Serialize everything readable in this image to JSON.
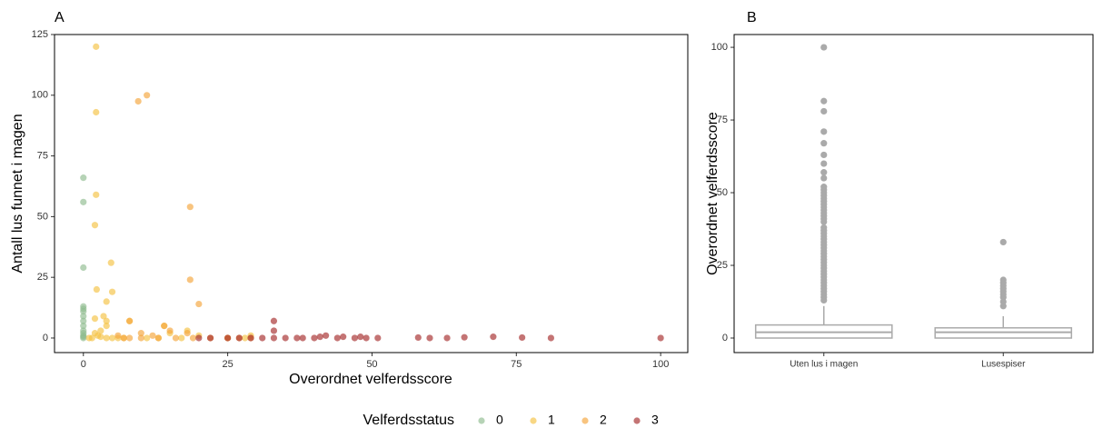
{
  "chart_data": [
    {
      "type": "scatter",
      "panel_label": "A",
      "x_label": "Overordnet velferdsscore",
      "y_label": "Antall lus funnet i magen",
      "xlim": [
        -5,
        104.7
      ],
      "ylim": [
        -6,
        125
      ],
      "xticks": [
        0,
        25,
        50,
        75,
        100
      ],
      "yticks": [
        0,
        25,
        50,
        75,
        100,
        125
      ],
      "legend_title": "Velferdsstatus",
      "series": [
        {
          "name": "0",
          "color": "#8fbc8f",
          "x": [
            0,
            0,
            0,
            0,
            0,
            0,
            0,
            0,
            0,
            0,
            0,
            0,
            0,
            0
          ],
          "y": [
            66,
            56,
            29,
            13,
            12,
            11,
            9,
            7,
            5,
            3,
            2,
            1,
            0.5,
            0
          ]
        },
        {
          "name": "1",
          "color": "#f5c242",
          "x": [
            2.2,
            2.2,
            2.2,
            2,
            4.8,
            2.3,
            5,
            4,
            3.5,
            4,
            2,
            4,
            3,
            2,
            2.5,
            3,
            4,
            5,
            7,
            8,
            14,
            18,
            15,
            20,
            25,
            28,
            29,
            1,
            1.5,
            6,
            11,
            13,
            17
          ],
          "y": [
            120,
            93,
            59,
            46.5,
            31,
            20,
            19,
            15,
            9,
            7,
            8,
            5,
            3,
            2,
            1,
            0.5,
            0,
            0,
            0,
            7,
            5,
            3,
            2,
            1,
            0,
            0,
            1,
            0,
            0,
            0,
            0,
            0,
            0
          ]
        },
        {
          "name": "2",
          "color": "#f5a43a",
          "x": [
            9.5,
            11,
            18.5,
            18.5,
            20,
            8,
            10,
            12,
            14,
            15,
            16,
            18,
            19,
            22,
            25,
            27,
            29,
            8,
            10,
            13,
            6,
            7
          ],
          "y": [
            97.5,
            100,
            54,
            24,
            14,
            7,
            2,
            1,
            5,
            3,
            0,
            2,
            0,
            0,
            0,
            0,
            0,
            0,
            0,
            0,
            1,
            0
          ]
        },
        {
          "name": "3",
          "color": "#a52a2a",
          "x": [
            33,
            33,
            20,
            22,
            25,
            27,
            29,
            31,
            33,
            35,
            37,
            38,
            40,
            41,
            42,
            44,
            45,
            47,
            48,
            49,
            51,
            58,
            60,
            63,
            66,
            71,
            76,
            81,
            100
          ],
          "y": [
            7,
            3,
            0,
            0,
            0,
            0,
            0,
            0,
            0,
            0,
            0,
            0,
            0,
            0.5,
            1,
            0,
            0.5,
            0,
            0.5,
            0,
            0,
            0.2,
            0,
            0,
            0.3,
            0.5,
            0.2,
            0,
            0
          ]
        }
      ]
    },
    {
      "type": "box",
      "panel_label": "B",
      "y_label": "Overordnet velferdsscore",
      "ylim": [
        -5,
        104.4
      ],
      "yticks": [
        0,
        25,
        50,
        75,
        100
      ],
      "color": "#aaaaaa",
      "categories": [
        "Uten lus i magen",
        "Lusespiser"
      ],
      "boxes": [
        {
          "whislo": 0,
          "q1": 0,
          "med": 2,
          "q3": 4.5,
          "whishi": 11,
          "outliers": [
            13,
            14,
            15,
            16,
            17,
            18,
            19,
            20,
            21,
            22,
            23,
            24,
            25,
            26,
            27,
            28,
            29,
            30,
            31,
            32,
            33,
            34,
            35,
            36,
            37,
            38,
            40,
            41,
            42,
            43,
            44,
            45,
            46,
            47,
            48,
            49,
            50,
            51,
            52,
            55,
            57,
            60,
            63,
            67,
            71,
            78,
            81.5,
            100
          ]
        },
        {
          "whislo": 0,
          "q1": 0,
          "med": 2,
          "q3": 3.5,
          "whishi": 7.5,
          "outliers": [
            11,
            12.5,
            14,
            15,
            16,
            17,
            18,
            19,
            20,
            33
          ]
        }
      ]
    }
  ]
}
